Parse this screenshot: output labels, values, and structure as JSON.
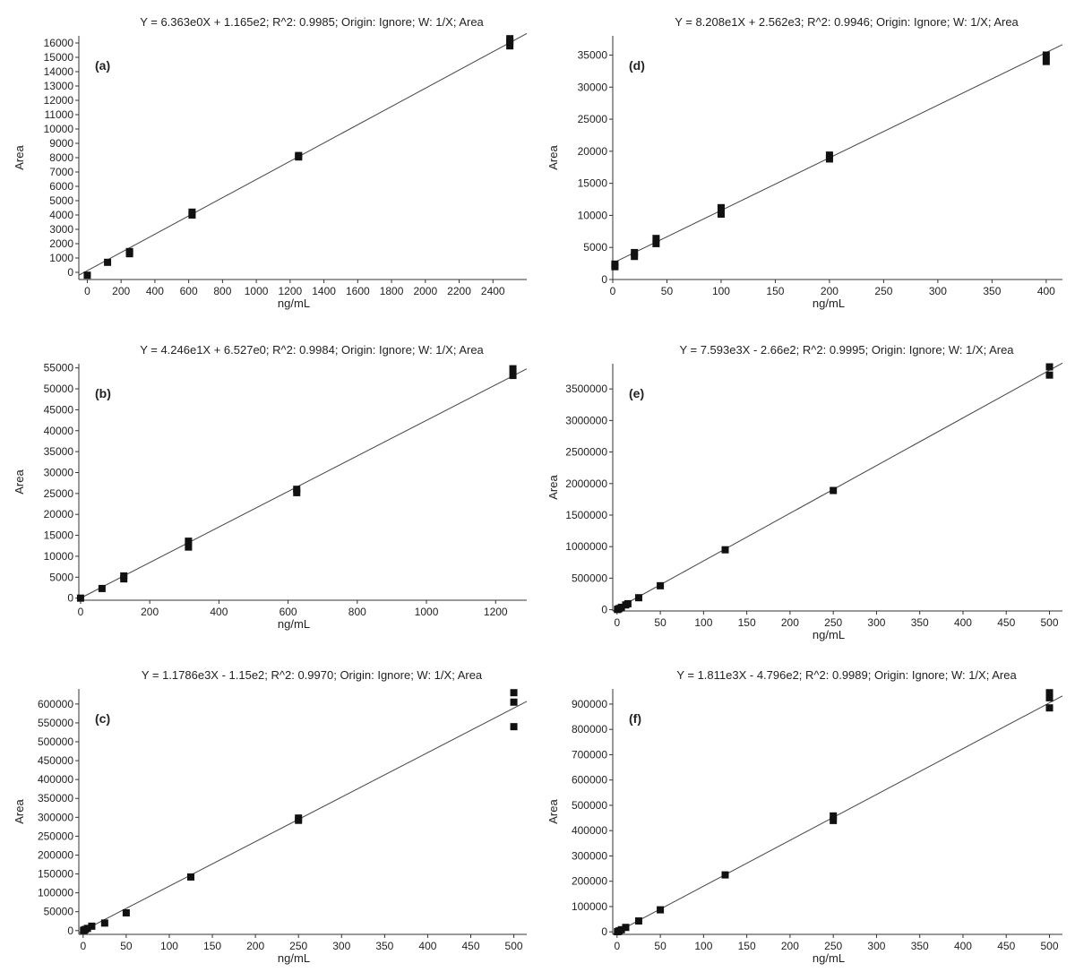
{
  "colors": {
    "line": "#444444",
    "marker": "#111111",
    "axis": "#333333",
    "text": "#222222"
  },
  "chart_data": [
    {
      "id": "a",
      "type": "scatter",
      "panel_label": "(a)",
      "title": "Y = 6.363e0X + 1.165e2; R^2: 0.9985; Origin: Ignore; W: 1/X; Area",
      "xlabel": "ng/mL",
      "ylabel": "Area",
      "xlim": [
        -50,
        2600
      ],
      "ylim": [
        -500,
        16500
      ],
      "xticks": [
        0,
        200,
        400,
        600,
        800,
        1000,
        1200,
        1400,
        1600,
        1800,
        2000,
        2200,
        2400
      ],
      "yticks": [
        0,
        1000,
        2000,
        3000,
        4000,
        5000,
        6000,
        7000,
        8000,
        9000,
        10000,
        11000,
        12000,
        13000,
        14000,
        15000,
        16000
      ],
      "fit": {
        "slope": 6.363,
        "intercept": 116.5
      },
      "points": [
        [
          0,
          -200
        ],
        [
          120,
          700
        ],
        [
          250,
          1300
        ],
        [
          250,
          1450
        ],
        [
          620,
          4000
        ],
        [
          620,
          4200
        ],
        [
          1250,
          8050
        ],
        [
          1250,
          8150
        ],
        [
          2500,
          15800
        ],
        [
          2500,
          16100
        ],
        [
          2500,
          16300
        ]
      ]
    },
    {
      "id": "d",
      "type": "scatter",
      "panel_label": "(d)",
      "title": "Y = 8.208e1X + 2.562e3; R^2: 0.9946; Origin: Ignore; W: 1/X; Area",
      "xlabel": "ng/mL",
      "ylabel": "Area",
      "xlim": [
        0,
        415
      ],
      "ylim": [
        0,
        38000
      ],
      "xticks": [
        0,
        50,
        100,
        150,
        200,
        250,
        300,
        350,
        400
      ],
      "yticks": [
        0,
        5000,
        10000,
        15000,
        20000,
        25000,
        30000,
        35000
      ],
      "fit": {
        "slope": 82.08,
        "intercept": 2562
      },
      "points": [
        [
          2,
          2000
        ],
        [
          2,
          2400
        ],
        [
          20,
          3600
        ],
        [
          20,
          4200
        ],
        [
          40,
          5600
        ],
        [
          40,
          6400
        ],
        [
          100,
          10200
        ],
        [
          100,
          11200
        ],
        [
          200,
          18800
        ],
        [
          200,
          19400
        ],
        [
          400,
          34000
        ],
        [
          400,
          35000
        ]
      ]
    },
    {
      "id": "b",
      "type": "scatter",
      "panel_label": "(b)",
      "title": "Y = 4.246e1X + 6.527e0; R^2: 0.9984; Origin: Ignore; W: 1/X; Area",
      "xlabel": "ng/mL",
      "ylabel": "Area",
      "xlim": [
        -5,
        1290
      ],
      "ylim": [
        -500,
        56000
      ],
      "xticks": [
        0,
        200,
        400,
        600,
        800,
        1000,
        1200
      ],
      "yticks": [
        0,
        5000,
        10000,
        15000,
        20000,
        25000,
        30000,
        35000,
        40000,
        45000,
        50000,
        55000
      ],
      "fit": {
        "slope": 42.46,
        "intercept": 6.527
      },
      "points": [
        [
          0,
          0
        ],
        [
          62,
          2300
        ],
        [
          125,
          4600
        ],
        [
          125,
          5300
        ],
        [
          312,
          12200
        ],
        [
          312,
          13600
        ],
        [
          625,
          25200
        ],
        [
          625,
          26000
        ],
        [
          1250,
          53200
        ],
        [
          1250,
          54800
        ]
      ]
    },
    {
      "id": "e",
      "type": "scatter",
      "panel_label": "(e)",
      "title": "Y = 7.593e3X - 2.66e2; R^2: 0.9995; Origin: Ignore; W: 1/X; Area",
      "xlabel": "ng/mL",
      "ylabel": "Area",
      "xlim": [
        -5,
        515
      ],
      "ylim": [
        -20000,
        3900000
      ],
      "xticks": [
        0,
        50,
        100,
        150,
        200,
        250,
        300,
        350,
        400,
        450,
        500
      ],
      "yticks": [
        0,
        500000,
        1000000,
        1500000,
        2000000,
        2500000,
        3000000,
        3500000
      ],
      "fit": {
        "slope": 7593,
        "intercept": -266
      },
      "points": [
        [
          0.5,
          4000
        ],
        [
          1,
          7500
        ],
        [
          2.5,
          19000
        ],
        [
          5,
          38000
        ],
        [
          10,
          76000
        ],
        [
          12.5,
          95000
        ],
        [
          25,
          190000
        ],
        [
          50,
          380000
        ],
        [
          125,
          950000
        ],
        [
          250,
          1890000
        ],
        [
          500,
          3720000
        ],
        [
          500,
          3850000
        ]
      ]
    },
    {
      "id": "c",
      "type": "scatter",
      "panel_label": "(c)",
      "title": "Y = 1.1786e3X - 1.15e2; R^2: 0.9970; Origin: Ignore; W: 1/X; Area",
      "xlabel": "ng/mL",
      "ylabel": "Area",
      "xlim": [
        -5,
        515
      ],
      "ylim": [
        -10000,
        640000
      ],
      "xticks": [
        0,
        50,
        100,
        150,
        200,
        250,
        300,
        350,
        400,
        450,
        500
      ],
      "yticks": [
        0,
        50000,
        100000,
        150000,
        200000,
        250000,
        300000,
        350000,
        400000,
        450000,
        500000,
        550000,
        600000
      ],
      "fit": {
        "slope": 1178.6,
        "intercept": -115
      },
      "points": [
        [
          0.5,
          500
        ],
        [
          1,
          1100
        ],
        [
          2.5,
          2900
        ],
        [
          5,
          5800
        ],
        [
          10,
          11700
        ],
        [
          25,
          20000
        ],
        [
          50,
          47000
        ],
        [
          125,
          142000
        ],
        [
          250,
          292000
        ],
        [
          250,
          298000
        ],
        [
          500,
          540000
        ],
        [
          500,
          605000
        ],
        [
          500,
          630000
        ]
      ]
    },
    {
      "id": "f",
      "type": "scatter",
      "panel_label": "(f)",
      "title": "Y = 1.811e3X - 4.796e2; R^2: 0.9989; Origin: Ignore; W: 1/X; Area",
      "xlabel": "ng/mL",
      "ylabel": "Area",
      "xlim": [
        -5,
        515
      ],
      "ylim": [
        -10000,
        960000
      ],
      "xticks": [
        0,
        50,
        100,
        150,
        200,
        250,
        300,
        350,
        400,
        450,
        500
      ],
      "yticks": [
        0,
        100000,
        200000,
        300000,
        400000,
        500000,
        600000,
        700000,
        800000,
        900000
      ],
      "fit": {
        "slope": 1811,
        "intercept": -479.6
      },
      "points": [
        [
          0.5,
          500
        ],
        [
          1,
          1300
        ],
        [
          2.5,
          4000
        ],
        [
          5,
          8500
        ],
        [
          10,
          17500
        ],
        [
          25,
          43000
        ],
        [
          50,
          87000
        ],
        [
          125,
          225000
        ],
        [
          250,
          440000
        ],
        [
          250,
          458000
        ],
        [
          500,
          885000
        ],
        [
          500,
          925000
        ],
        [
          500,
          945000
        ]
      ]
    }
  ]
}
